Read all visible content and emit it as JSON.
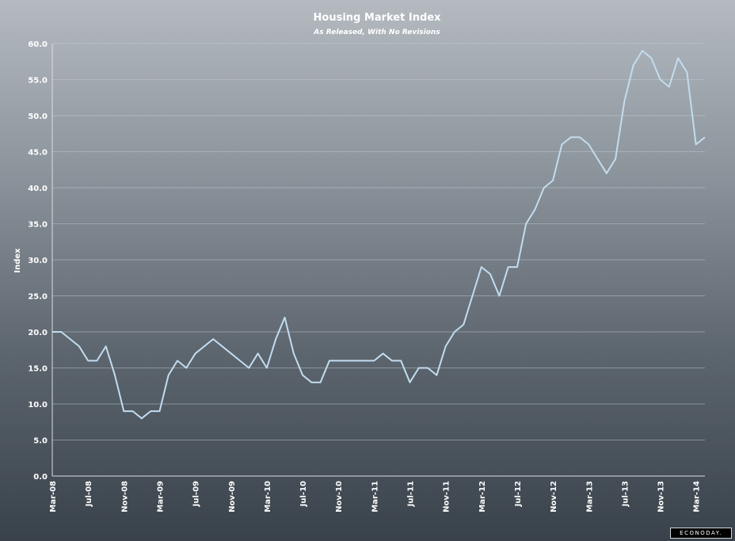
{
  "brand": {
    "logo_text": "ECONODAY."
  },
  "chart_data": {
    "type": "line",
    "title": "Housing Market Index",
    "subtitle": "As Released, With No Revisions",
    "ylabel": "Index",
    "xlabel": "",
    "ylim": [
      0,
      60
    ],
    "yticks": [
      "0.0",
      "5.0",
      "10.0",
      "15.0",
      "20.0",
      "25.0",
      "30.0",
      "35.0",
      "40.0",
      "45.0",
      "50.0",
      "55.0",
      "60.0"
    ],
    "x_tick_labels": [
      "Mar-08",
      "Jul-08",
      "Nov-08",
      "Mar-09",
      "Jul-09",
      "Nov-09",
      "Mar-10",
      "Jul-10",
      "Nov-10",
      "Mar-11",
      "Jul-11",
      "Nov-11",
      "Mar-12",
      "Jul-12",
      "Nov-12",
      "Mar-13",
      "Jul-13",
      "Nov-13",
      "Mar-14"
    ],
    "grid": true,
    "line_color": "#c2dcf0",
    "series": [
      {
        "start": "Mar-08",
        "frequency": "monthly",
        "values": [
          20,
          20,
          19,
          18,
          16,
          16,
          18,
          14,
          9,
          9,
          8,
          9,
          9,
          14,
          16,
          15,
          17,
          18,
          19,
          18,
          17,
          16,
          15,
          17,
          15,
          19,
          22,
          17,
          14,
          13,
          13,
          16,
          16,
          16,
          16,
          16,
          16,
          17,
          16,
          16,
          13,
          15,
          15,
          14,
          18,
          20,
          21,
          25,
          29,
          28,
          25,
          29,
          29,
          35,
          37,
          40,
          41,
          46,
          47,
          47,
          46,
          44,
          42,
          44,
          52,
          57,
          59,
          58,
          55,
          54,
          58,
          56,
          46,
          47
        ]
      }
    ]
  }
}
